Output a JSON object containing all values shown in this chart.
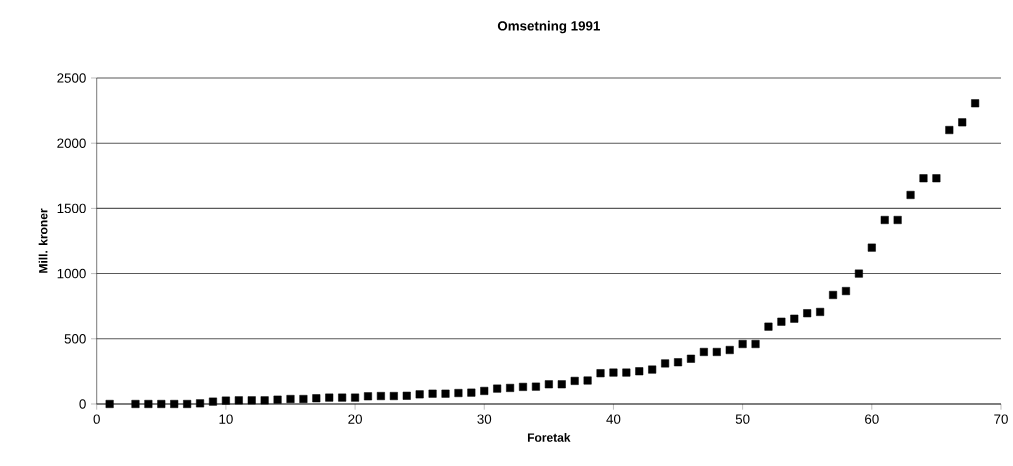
{
  "chart_data": {
    "type": "scatter",
    "title": "Omsetning 1991",
    "xlabel": "Foretak",
    "ylabel": "Mill. kroner",
    "x": [
      1,
      3,
      4,
      5,
      6,
      7,
      8,
      9,
      10,
      11,
      12,
      13,
      14,
      15,
      16,
      17,
      18,
      19,
      20,
      21,
      22,
      23,
      24,
      25,
      26,
      27,
      28,
      29,
      30,
      31,
      32,
      33,
      34,
      35,
      36,
      37,
      38,
      39,
      40,
      41,
      42,
      43,
      44,
      45,
      46,
      47,
      48,
      49,
      50,
      51,
      52,
      53,
      54,
      55,
      56,
      57,
      58,
      59,
      60,
      61,
      62,
      63,
      64,
      65,
      66,
      67,
      68
    ],
    "values": [
      0,
      0,
      0,
      0,
      0,
      0,
      5,
      18,
      26,
      28,
      28,
      28,
      33,
      38,
      38,
      44,
      49,
      49,
      49,
      59,
      61,
      61,
      63,
      74,
      79,
      79,
      84,
      87,
      100,
      118,
      123,
      131,
      133,
      151,
      151,
      177,
      180,
      236,
      241,
      241,
      251,
      264,
      311,
      320,
      347,
      399,
      399,
      414,
      460,
      460,
      593,
      631,
      654,
      696,
      706,
      836,
      866,
      1000,
      1199,
      1411,
      1411,
      1603,
      1731,
      1731,
      2101,
      2160,
      2306
    ],
    "color": "#000000",
    "marker": "square",
    "grid": "y",
    "xlim": [
      0,
      70
    ],
    "xticks": [
      0,
      10,
      20,
      30,
      40,
      50,
      60,
      70
    ],
    "ylim": [
      0,
      2500
    ],
    "yticks": [
      0,
      500,
      1000,
      1500,
      2000,
      2500
    ]
  }
}
